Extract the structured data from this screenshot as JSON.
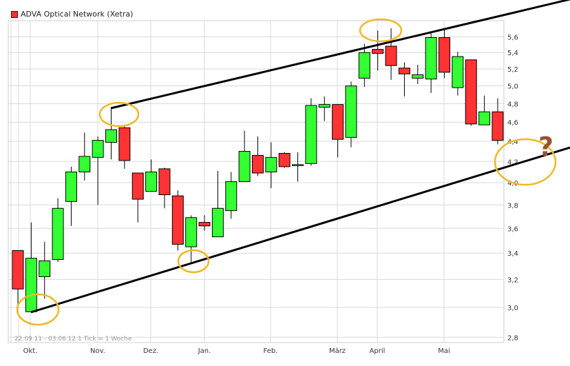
{
  "chart_data": {
    "type": "candlestick",
    "title": "ADVA Optical Network (Xetra)",
    "footnote": "22.09.11 - 03.06.12   1 Tick = 1 Woche",
    "y_scale": "log",
    "ylim": [
      2.75,
      5.75
    ],
    "y_ticks": [
      "2,8",
      "3,0",
      "3,2",
      "3,4",
      "3,6",
      "3,8",
      "4,0",
      "4,2",
      "4,4",
      "4,6",
      "4,8",
      "5,0",
      "5,2",
      "5,4",
      "5,6"
    ],
    "y_tick_values": [
      2.8,
      3.0,
      3.2,
      3.4,
      3.6,
      3.8,
      4.0,
      4.2,
      4.4,
      4.6,
      4.8,
      5.0,
      5.2,
      5.4,
      5.6
    ],
    "x_ticks": [
      "Okt.",
      "Nov.",
      "Dez.",
      "Jan.",
      "Feb.",
      "März",
      "April",
      "Mai"
    ],
    "grid": true,
    "colors": {
      "up": "#33ff33",
      "down": "#ff3333",
      "annotation": "#f0b820",
      "question": "#94562e",
      "trendline": "#000000",
      "grid": "#d8d8d8"
    },
    "annotation_text": "?",
    "candles": [
      {
        "o": 3.42,
        "h": 3.42,
        "l": 2.99,
        "c": 3.13
      },
      {
        "o": 2.97,
        "h": 3.65,
        "l": 2.97,
        "c": 3.36
      },
      {
        "o": 3.22,
        "h": 3.49,
        "l": 3.06,
        "c": 3.34
      },
      {
        "o": 3.35,
        "h": 3.86,
        "l": 3.33,
        "c": 3.77
      },
      {
        "o": 3.83,
        "h": 4.15,
        "l": 3.62,
        "c": 4.1
      },
      {
        "o": 4.1,
        "h": 4.49,
        "l": 4.02,
        "c": 4.25
      },
      {
        "o": 4.24,
        "h": 4.45,
        "l": 3.8,
        "c": 4.41
      },
      {
        "o": 4.39,
        "h": 4.75,
        "l": 4.22,
        "c": 4.52
      },
      {
        "o": 4.54,
        "h": 4.57,
        "l": 4.13,
        "c": 4.21
      },
      {
        "o": 4.09,
        "h": 4.09,
        "l": 3.65,
        "c": 3.85
      },
      {
        "o": 3.92,
        "h": 4.22,
        "l": 3.92,
        "c": 4.1
      },
      {
        "o": 4.13,
        "h": 4.14,
        "l": 3.77,
        "c": 3.89
      },
      {
        "o": 3.88,
        "h": 3.93,
        "l": 3.42,
        "c": 3.47
      },
      {
        "o": 3.45,
        "h": 3.71,
        "l": 3.33,
        "c": 3.69
      },
      {
        "o": 3.65,
        "h": 3.71,
        "l": 3.58,
        "c": 3.62
      },
      {
        "o": 3.53,
        "h": 4.11,
        "l": 3.53,
        "c": 3.77
      },
      {
        "o": 3.75,
        "h": 4.1,
        "l": 3.68,
        "c": 4.01
      },
      {
        "o": 4.01,
        "h": 4.51,
        "l": 4.01,
        "c": 4.3
      },
      {
        "o": 4.26,
        "h": 4.45,
        "l": 4.06,
        "c": 4.09
      },
      {
        "o": 4.1,
        "h": 4.39,
        "l": 3.95,
        "c": 4.24
      },
      {
        "o": 4.28,
        "h": 4.29,
        "l": 4.14,
        "c": 4.15
      },
      {
        "o": 4.17,
        "h": 4.29,
        "l": 4.01,
        "c": 4.17
      },
      {
        "o": 4.18,
        "h": 4.86,
        "l": 4.16,
        "c": 4.78
      },
      {
        "o": 4.76,
        "h": 4.88,
        "l": 4.61,
        "c": 4.79
      },
      {
        "o": 4.79,
        "h": 4.79,
        "l": 4.24,
        "c": 4.42
      },
      {
        "o": 4.44,
        "h": 5.05,
        "l": 4.34,
        "c": 5.0
      },
      {
        "o": 5.09,
        "h": 5.51,
        "l": 4.99,
        "c": 5.4
      },
      {
        "o": 5.44,
        "h": 5.68,
        "l": 5.18,
        "c": 5.39
      },
      {
        "o": 5.48,
        "h": 5.71,
        "l": 5.07,
        "c": 5.24
      },
      {
        "o": 5.21,
        "h": 5.28,
        "l": 4.88,
        "c": 5.14
      },
      {
        "o": 5.09,
        "h": 5.25,
        "l": 5.02,
        "c": 5.13
      },
      {
        "o": 5.08,
        "h": 5.67,
        "l": 4.92,
        "c": 5.59
      },
      {
        "o": 5.59,
        "h": 5.71,
        "l": 5.09,
        "c": 5.16
      },
      {
        "o": 4.98,
        "h": 5.41,
        "l": 4.89,
        "c": 5.35
      },
      {
        "o": 5.31,
        "h": 5.31,
        "l": 4.56,
        "c": 4.58
      },
      {
        "o": 4.57,
        "h": 4.89,
        "l": 4.57,
        "c": 4.71
      },
      {
        "o": 4.71,
        "h": 4.86,
        "l": 4.37,
        "c": 4.41
      }
    ]
  }
}
